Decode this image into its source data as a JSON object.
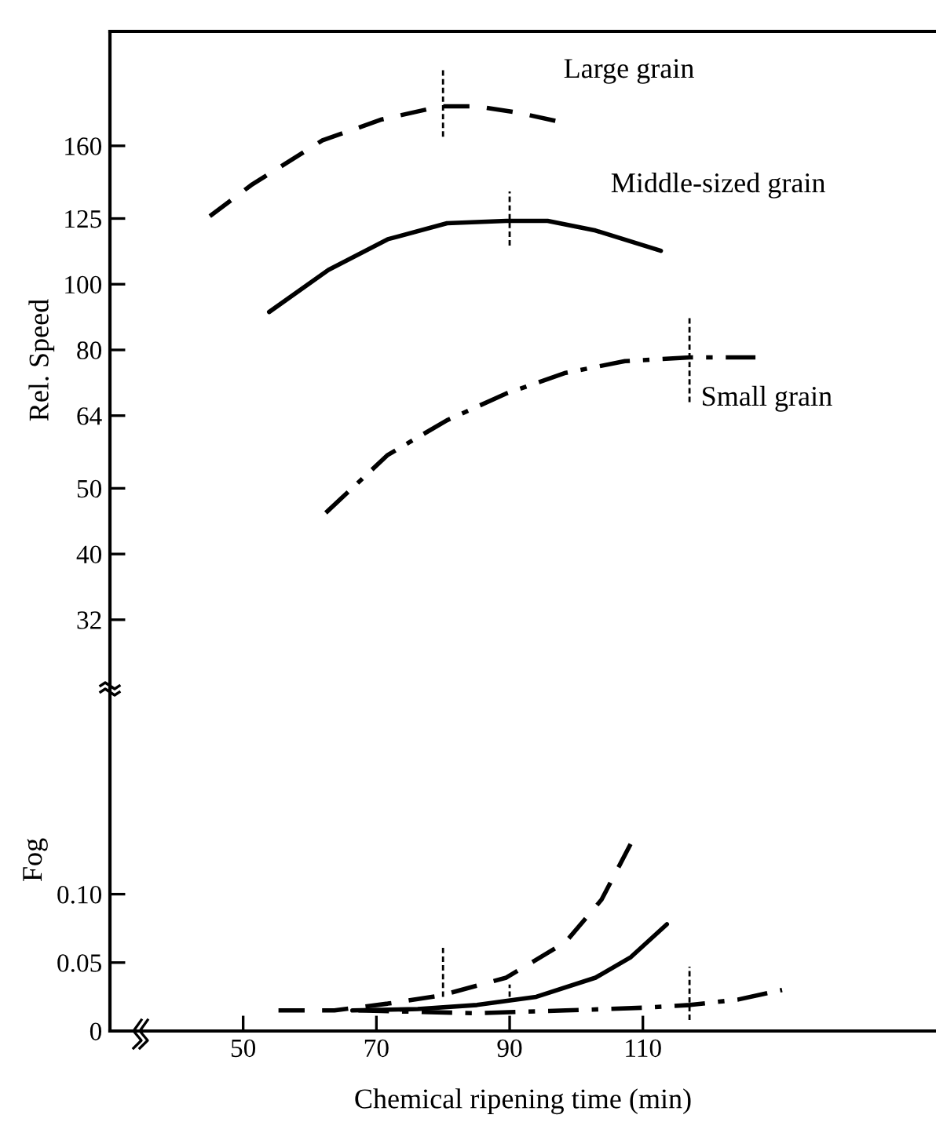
{
  "chart_data": [
    {
      "type": "line",
      "ylabel": "Rel. Speed",
      "log": "y",
      "xlim": [
        30,
        154
      ],
      "ylim": [
        25.3,
        236
      ],
      "yticks": [
        32,
        40,
        50,
        64,
        80,
        100,
        125,
        160
      ],
      "tick_labels": "y",
      "grid": false,
      "legend": false,
      "marker": "none",
      "series": [
        {
          "name": "Large grain",
          "color": "#000000",
          "line_style": "dashed",
          "x": [
            45.0,
            51.2,
            61.9,
            70.8,
            79.7,
            85.1,
            91.3,
            97.1
          ],
          "values": [
            126,
            140,
            163,
            175,
            183,
            183,
            179,
            174
          ]
        },
        {
          "name": "Middle-sized grain",
          "color": "#000000",
          "line_style": "solid",
          "x": [
            53.9,
            62.8,
            71.7,
            80.6,
            89.5,
            95.7,
            102.9,
            112.7
          ],
          "values": [
            91,
            105,
            116.5,
            123,
            124,
            124,
            120,
            112
          ]
        },
        {
          "name": "Small grain",
          "color": "#000000",
          "line_style": "dashdot",
          "x": [
            62.4,
            71.7,
            80.6,
            89.5,
            98.4,
            107.3,
            117.1,
            126.9
          ],
          "values": [
            46,
            56,
            63,
            69,
            74,
            77,
            78,
            78
          ]
        },
        {
          "color": "#000000",
          "line_style": "dashed",
          "x": [
            80,
            80
          ],
          "values": [
            165,
            208
          ]
        },
        {
          "color": "#000000",
          "line_style": "dashed",
          "x": [
            90,
            90
          ],
          "values": [
            114,
            137
          ]
        },
        {
          "color": "#000000",
          "line_style": "dashed",
          "x": [
            117,
            117
          ],
          "values": [
            67,
            90
          ]
        }
      ]
    },
    {
      "type": "line",
      "xlabel": "Chemical ripening time (min)",
      "ylabel": "Fog",
      "xlim": [
        30,
        154
      ],
      "ylim": [
        0,
        0.25
      ],
      "xticks": [
        50,
        70,
        90,
        110
      ],
      "yticks": [
        0,
        0.05,
        {
          "value": 0.1,
          "label": "0.10"
        }
      ],
      "grid": false,
      "legend": false,
      "marker": "none",
      "series": [
        {
          "color": "#000000",
          "line_style": "dashed",
          "x": [
            55.3,
            63.7,
            71.7,
            79.7,
            89.5,
            98.4,
            103.8,
            108.2
          ],
          "values": [
            0.015,
            0.015,
            0.02,
            0.026,
            0.039,
            0.065,
            0.096,
            0.137
          ]
        },
        {
          "color": "#000000",
          "line_style": "solid",
          "x": [
            66.4,
            76.2,
            85.1,
            94.0,
            102.9,
            108.2,
            113.6
          ],
          "values": [
            0.015,
            0.016,
            0.019,
            0.025,
            0.039,
            0.054,
            0.078
          ]
        },
        {
          "color": "#000000",
          "line_style": "dashdot",
          "x": [
            67.3,
            85.1,
            98.4,
            110.0,
            117.1,
            124.3,
            130.9
          ],
          "values": [
            0.015,
            0.013,
            0.015,
            0.017,
            0.019,
            0.023,
            0.03
          ]
        },
        {
          "color": "#000000",
          "line_style": "dashed",
          "x": [
            80,
            80
          ],
          "values": [
            0.025,
            0.063
          ]
        },
        {
          "color": "#000000",
          "line_style": "dashed",
          "x": [
            90,
            90
          ],
          "values": [
            0.025,
            0.034
          ]
        },
        {
          "color": "#000000",
          "line_style": "dashed",
          "x": [
            117,
            117
          ],
          "values": [
            0.008,
            0.047
          ]
        }
      ]
    }
  ]
}
